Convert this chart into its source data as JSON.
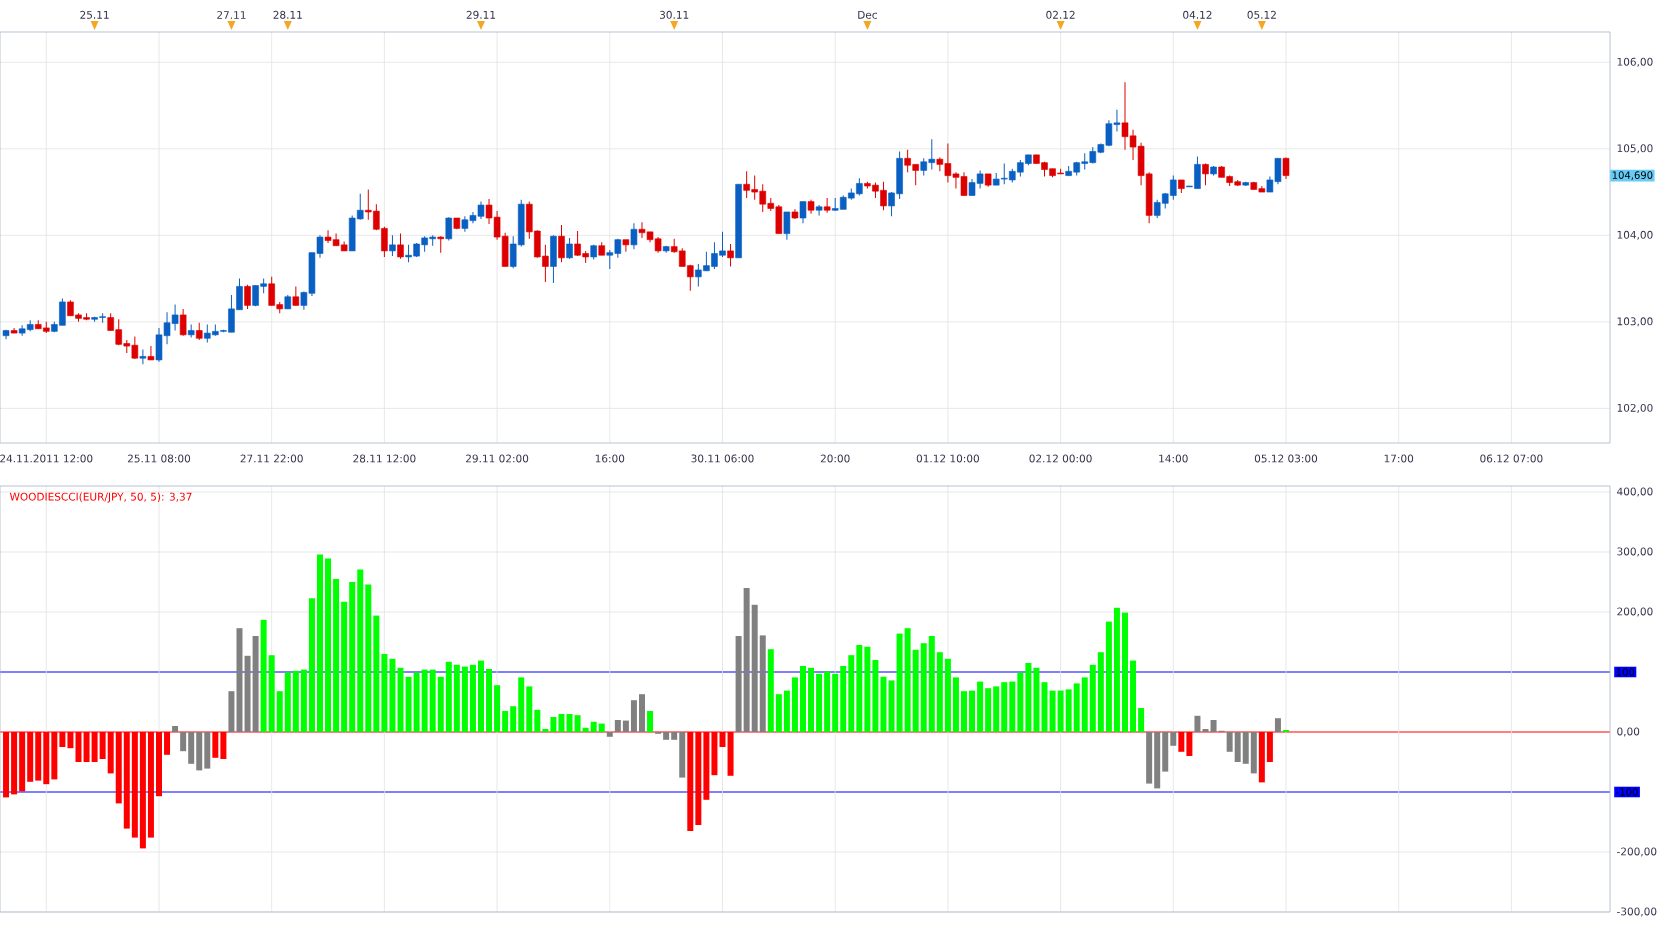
{
  "chart_data": [
    {
      "type": "candlestick",
      "categories": [
        null,
        null,
        null,
        null,
        null,
        "24.11.2011 12:00",
        null,
        null,
        null,
        null,
        null,
        null,
        null,
        null,
        null,
        null,
        null,
        null,
        null,
        "25.11 08:00",
        null,
        null,
        null,
        null,
        null,
        null,
        null,
        null,
        null,
        null,
        null,
        null,
        null,
        "27.11 22:00",
        null,
        null,
        null,
        null,
        null,
        null,
        null,
        null,
        null,
        null,
        null,
        null,
        null,
        "28.11 12:00",
        null,
        null,
        null,
        null,
        null,
        null,
        null,
        null,
        null,
        null,
        null,
        null,
        null,
        "29.11 02:00",
        null,
        null,
        null,
        null,
        null,
        null,
        null,
        null,
        null,
        null,
        null,
        null,
        null,
        "16:00",
        null,
        null,
        null,
        null,
        null,
        null,
        null,
        null,
        null,
        null,
        null,
        null,
        null,
        "30.11 06:00",
        null,
        null,
        null,
        null,
        null,
        null,
        null,
        null,
        null,
        null,
        null,
        null,
        null,
        "20:00",
        null,
        null,
        null,
        null,
        null,
        null,
        null,
        null,
        null,
        null,
        null,
        null,
        null,
        "01.12 10:00",
        null,
        null,
        null,
        null,
        null,
        null,
        null,
        null,
        null,
        null,
        null,
        null,
        null,
        "02.12 00:00",
        null,
        null,
        null,
        null,
        null,
        null,
        null,
        null,
        null,
        null,
        null,
        null,
        null,
        "14:00",
        null,
        null,
        null,
        null,
        null,
        null,
        null,
        null,
        null,
        null,
        null,
        null,
        null,
        "05.12 03:00",
        null,
        null,
        null,
        null,
        null,
        null,
        null,
        null,
        null,
        null,
        null,
        null,
        null,
        "17:00",
        null,
        null,
        null,
        null,
        null,
        null,
        null,
        null,
        null,
        null,
        null,
        null,
        null,
        "06.12 07:00",
        null,
        null,
        null,
        null,
        null,
        null,
        null,
        null,
        null,
        null,
        null,
        null
      ],
      "ohlc": [
        [
          102.84,
          102.91,
          102.8,
          102.9
        ],
        [
          102.9,
          102.93,
          102.87,
          102.87
        ],
        [
          102.87,
          102.96,
          102.84,
          102.92
        ],
        [
          102.91,
          103.02,
          102.89,
          102.97
        ],
        [
          102.97,
          103.02,
          102.92,
          102.92
        ],
        [
          102.93,
          103.0,
          102.87,
          102.89
        ],
        [
          102.89,
          103.0,
          102.88,
          102.97
        ],
        [
          102.96,
          103.27,
          102.96,
          103.23
        ],
        [
          103.23,
          103.25,
          103.07,
          103.07
        ],
        [
          103.08,
          103.1,
          103.0,
          103.04
        ],
        [
          103.05,
          103.1,
          103.02,
          103.03
        ],
        [
          103.03,
          103.06,
          103.0,
          103.05
        ],
        [
          103.05,
          103.1,
          102.99,
          103.06
        ],
        [
          103.05,
          103.1,
          102.9,
          102.9
        ],
        [
          102.91,
          103.03,
          102.73,
          102.74
        ],
        [
          102.75,
          102.79,
          102.64,
          102.72
        ],
        [
          102.73,
          102.83,
          102.57,
          102.58
        ],
        [
          102.58,
          102.68,
          102.51,
          102.6
        ],
        [
          102.6,
          102.72,
          102.56,
          102.56
        ],
        [
          102.56,
          102.93,
          102.54,
          102.85
        ],
        [
          102.84,
          103.11,
          102.74,
          102.99
        ],
        [
          102.98,
          103.2,
          102.9,
          103.08
        ],
        [
          103.08,
          103.15,
          102.84,
          102.85
        ],
        [
          102.85,
          102.97,
          102.82,
          102.9
        ],
        [
          102.9,
          102.99,
          102.79,
          102.81
        ],
        [
          102.81,
          102.97,
          102.76,
          102.87
        ],
        [
          102.85,
          102.97,
          102.84,
          102.89
        ],
        [
          102.89,
          102.91,
          102.88,
          102.9
        ],
        [
          102.88,
          103.31,
          102.88,
          103.15
        ],
        [
          103.14,
          103.5,
          103.14,
          103.41
        ],
        [
          103.41,
          103.43,
          103.15,
          103.19
        ],
        [
          103.19,
          103.42,
          103.18,
          103.42
        ],
        [
          103.41,
          103.5,
          103.33,
          103.44
        ],
        [
          103.44,
          103.52,
          103.19,
          103.19
        ],
        [
          103.2,
          103.23,
          103.1,
          103.15
        ],
        [
          103.15,
          103.31,
          103.15,
          103.29
        ],
        [
          103.29,
          103.41,
          103.19,
          103.19
        ],
        [
          103.19,
          103.35,
          103.14,
          103.34
        ],
        [
          103.33,
          103.8,
          103.3,
          103.8
        ],
        [
          103.79,
          104.0,
          103.74,
          103.98
        ],
        [
          103.98,
          104.06,
          103.91,
          103.94
        ],
        [
          103.95,
          104.02,
          103.88,
          103.88
        ],
        [
          103.89,
          103.93,
          103.82,
          103.82
        ],
        [
          103.82,
          104.23,
          103.82,
          104.2
        ],
        [
          104.19,
          104.48,
          104.18,
          104.29
        ],
        [
          104.29,
          104.53,
          104.18,
          104.27
        ],
        [
          104.28,
          104.36,
          104.06,
          104.07
        ],
        [
          104.08,
          104.1,
          103.75,
          103.82
        ],
        [
          103.82,
          104.0,
          103.76,
          103.89
        ],
        [
          103.89,
          104.02,
          103.73,
          103.75
        ],
        [
          103.75,
          103.89,
          103.69,
          103.77
        ],
        [
          103.76,
          103.91,
          103.75,
          103.9
        ],
        [
          103.89,
          103.99,
          103.81,
          103.97
        ],
        [
          103.96,
          104.0,
          103.88,
          103.98
        ],
        [
          103.98,
          103.99,
          103.8,
          103.96
        ],
        [
          103.96,
          104.21,
          103.94,
          104.2
        ],
        [
          104.2,
          104.2,
          104.07,
          104.08
        ],
        [
          104.08,
          104.22,
          104.04,
          104.18
        ],
        [
          104.17,
          104.27,
          104.14,
          104.23
        ],
        [
          104.22,
          104.39,
          104.19,
          104.35
        ],
        [
          104.35,
          104.42,
          104.13,
          104.2
        ],
        [
          104.21,
          104.28,
          103.95,
          103.98
        ],
        [
          103.99,
          104.03,
          103.64,
          103.64
        ],
        [
          103.64,
          103.99,
          103.62,
          103.9
        ],
        [
          103.89,
          104.41,
          103.87,
          104.36
        ],
        [
          104.36,
          104.39,
          103.96,
          104.04
        ],
        [
          104.05,
          104.06,
          103.74,
          103.75
        ],
        [
          103.76,
          103.89,
          103.46,
          103.64
        ],
        [
          103.64,
          104.0,
          103.45,
          103.99
        ],
        [
          103.99,
          104.12,
          103.69,
          103.74
        ],
        [
          103.74,
          103.97,
          103.73,
          103.9
        ],
        [
          103.9,
          104.05,
          103.76,
          103.77
        ],
        [
          103.79,
          103.82,
          103.68,
          103.75
        ],
        [
          103.75,
          103.89,
          103.72,
          103.88
        ],
        [
          103.88,
          103.92,
          103.77,
          103.77
        ],
        [
          103.77,
          103.83,
          103.61,
          103.8
        ],
        [
          103.79,
          103.96,
          103.74,
          103.95
        ],
        [
          103.95,
          103.95,
          103.81,
          103.89
        ],
        [
          103.89,
          104.14,
          103.84,
          104.07
        ],
        [
          104.07,
          104.15,
          103.97,
          104.03
        ],
        [
          104.04,
          104.04,
          103.92,
          103.95
        ],
        [
          103.96,
          103.98,
          103.8,
          103.82
        ],
        [
          103.82,
          103.88,
          103.8,
          103.87
        ],
        [
          103.87,
          103.96,
          103.8,
          103.81
        ],
        [
          103.82,
          103.85,
          103.64,
          103.64
        ],
        [
          103.65,
          103.66,
          103.36,
          103.52
        ],
        [
          103.52,
          103.67,
          103.41,
          103.6
        ],
        [
          103.59,
          103.81,
          103.59,
          103.65
        ],
        [
          103.64,
          103.92,
          103.61,
          103.79
        ],
        [
          103.77,
          104.04,
          103.75,
          103.82
        ],
        [
          103.82,
          103.9,
          103.64,
          103.74
        ],
        [
          103.74,
          104.59,
          103.74,
          104.59
        ],
        [
          104.59,
          104.74,
          104.43,
          104.52
        ],
        [
          104.53,
          104.69,
          104.41,
          104.5
        ],
        [
          104.51,
          104.59,
          104.27,
          104.36
        ],
        [
          104.37,
          104.43,
          104.28,
          104.31
        ],
        [
          104.33,
          104.35,
          104.02,
          104.02
        ],
        [
          104.02,
          104.27,
          103.95,
          104.27
        ],
        [
          104.27,
          104.3,
          104.19,
          104.2
        ],
        [
          104.2,
          104.39,
          104.14,
          104.39
        ],
        [
          104.39,
          104.41,
          104.25,
          104.29
        ],
        [
          104.29,
          104.35,
          104.23,
          104.33
        ],
        [
          104.33,
          104.43,
          104.26,
          104.29
        ],
        [
          104.29,
          104.43,
          104.28,
          104.31
        ],
        [
          104.3,
          104.46,
          104.3,
          104.44
        ],
        [
          104.43,
          104.54,
          104.41,
          104.49
        ],
        [
          104.48,
          104.66,
          104.46,
          104.6
        ],
        [
          104.6,
          104.62,
          104.54,
          104.57
        ],
        [
          104.58,
          104.61,
          104.43,
          104.51
        ],
        [
          104.52,
          104.62,
          104.29,
          104.34
        ],
        [
          104.34,
          104.5,
          104.22,
          104.49
        ],
        [
          104.48,
          104.97,
          104.42,
          104.89
        ],
        [
          104.89,
          104.99,
          104.73,
          104.81
        ],
        [
          104.82,
          104.82,
          104.58,
          104.75
        ],
        [
          104.75,
          104.89,
          104.69,
          104.85
        ],
        [
          104.84,
          105.11,
          104.76,
          104.88
        ],
        [
          104.88,
          104.9,
          104.74,
          104.82
        ],
        [
          104.83,
          105.06,
          104.61,
          104.69
        ],
        [
          104.71,
          104.73,
          104.54,
          104.67
        ],
        [
          104.68,
          104.73,
          104.46,
          104.46
        ],
        [
          104.46,
          104.65,
          104.46,
          104.61
        ],
        [
          104.6,
          104.75,
          104.54,
          104.71
        ],
        [
          104.71,
          104.71,
          104.56,
          104.58
        ],
        [
          104.58,
          104.72,
          104.58,
          104.65
        ],
        [
          104.65,
          104.83,
          104.59,
          104.66
        ],
        [
          104.64,
          104.77,
          104.61,
          104.74
        ],
        [
          104.73,
          104.87,
          104.68,
          104.84
        ],
        [
          104.83,
          104.93,
          104.81,
          104.93
        ],
        [
          104.93,
          104.93,
          104.83,
          104.83
        ],
        [
          104.84,
          104.85,
          104.68,
          104.76
        ],
        [
          104.77,
          104.77,
          104.67,
          104.69
        ],
        [
          104.72,
          104.77,
          104.71,
          104.71
        ],
        [
          104.69,
          104.8,
          104.69,
          104.74
        ],
        [
          104.73,
          104.85,
          104.69,
          104.84
        ],
        [
          104.83,
          104.95,
          104.76,
          104.85
        ],
        [
          104.84,
          105.02,
          104.83,
          104.97
        ],
        [
          104.96,
          105.06,
          104.95,
          105.05
        ],
        [
          105.04,
          105.33,
          105.03,
          105.29
        ],
        [
          105.28,
          105.45,
          105.2,
          105.3
        ],
        [
          105.3,
          105.77,
          104.99,
          105.14
        ],
        [
          105.15,
          105.22,
          104.87,
          105.02
        ],
        [
          105.03,
          105.07,
          104.58,
          104.69
        ],
        [
          104.71,
          104.73,
          104.14,
          104.23
        ],
        [
          104.23,
          104.41,
          104.2,
          104.38
        ],
        [
          104.37,
          104.49,
          104.31,
          104.48
        ],
        [
          104.46,
          104.69,
          104.41,
          104.64
        ],
        [
          104.64,
          104.64,
          104.49,
          104.54
        ],
        [
          104.56,
          104.57,
          104.56,
          104.57
        ],
        [
          104.54,
          104.91,
          104.54,
          104.82
        ],
        [
          104.82,
          104.83,
          104.58,
          104.71
        ],
        [
          104.71,
          104.8,
          104.69,
          104.79
        ],
        [
          104.79,
          104.8,
          104.67,
          104.67
        ],
        [
          104.68,
          104.69,
          104.57,
          104.61
        ],
        [
          104.62,
          104.64,
          104.57,
          104.58
        ],
        [
          104.58,
          104.62,
          104.57,
          104.61
        ],
        [
          104.61,
          104.62,
          104.53,
          104.53
        ],
        [
          104.54,
          104.57,
          104.5,
          104.5
        ],
        [
          104.5,
          104.68,
          104.5,
          104.64
        ],
        [
          104.62,
          104.89,
          104.59,
          104.89
        ],
        [
          104.89,
          104.9,
          104.65,
          104.69
        ],
        null,
        null,
        null,
        null,
        null,
        null,
        null,
        null,
        null,
        null,
        null,
        null,
        null,
        null,
        null,
        null,
        null,
        null,
        null,
        null,
        null,
        null,
        null,
        null,
        null,
        null,
        null,
        null,
        null,
        null,
        null,
        null,
        null,
        null,
        null,
        null,
        null,
        null,
        null,
        null
      ],
      "colors": [
        "#0a5fc2",
        "#dd0000",
        "#0a5fc2",
        "#0a5fc2",
        "#dd0000",
        "#dd0000",
        "#0a5fc2",
        "#0a5fc2",
        "#dd0000",
        "#dd0000",
        "#dd0000",
        "#0a5fc2",
        "#0a5fc2",
        "#dd0000",
        "#dd0000",
        "#dd0000",
        "#dd0000",
        "#0a5fc2",
        "#dd0000",
        "#0a5fc2",
        "#0a5fc2",
        "#0a5fc2",
        "#dd0000",
        "#0a5fc2",
        "#dd0000",
        "#0a5fc2",
        "#0a5fc2",
        "#0a5fc2",
        "#0a5fc2",
        "#0a5fc2",
        "#dd0000",
        "#0a5fc2",
        "#0a5fc2",
        "#dd0000",
        "#dd0000",
        "#0a5fc2",
        "#dd0000",
        "#0a5fc2",
        "#0a5fc2",
        "#0a5fc2",
        "#dd0000",
        "#dd0000",
        "#dd0000",
        "#0a5fc2",
        "#0a5fc2",
        "#dd0000",
        "#dd0000",
        "#dd0000",
        "#0a5fc2",
        "#dd0000",
        "#0a5fc2",
        "#0a5fc2",
        "#0a5fc2",
        "#0a5fc2",
        "#dd0000",
        "#0a5fc2",
        "#dd0000",
        "#0a5fc2",
        "#0a5fc2",
        "#0a5fc2",
        "#dd0000",
        "#dd0000",
        "#dd0000",
        "#0a5fc2",
        "#0a5fc2",
        "#dd0000",
        "#dd0000",
        "#dd0000",
        "#0a5fc2",
        "#dd0000",
        "#0a5fc2",
        "#dd0000",
        "#dd0000",
        "#0a5fc2",
        "#dd0000",
        "#0a5fc2",
        "#0a5fc2",
        "#dd0000",
        "#0a5fc2",
        "#dd0000",
        "#dd0000",
        "#dd0000",
        "#0a5fc2",
        "#dd0000",
        "#dd0000",
        "#dd0000",
        "#0a5fc2",
        "#0a5fc2",
        "#0a5fc2",
        "#0a5fc2",
        "#dd0000",
        "#0a5fc2",
        "#dd0000",
        "#dd0000",
        "#dd0000",
        "#dd0000",
        "#dd0000",
        "#0a5fc2",
        "#dd0000",
        "#0a5fc2",
        "#dd0000",
        "#0a5fc2",
        "#dd0000",
        "#0a5fc2",
        "#0a5fc2",
        "#0a5fc2",
        "#0a5fc2",
        "#dd0000",
        "#dd0000",
        "#dd0000",
        "#0a5fc2",
        "#0a5fc2",
        "#dd0000",
        "#dd0000",
        "#0a5fc2",
        "#0a5fc2",
        "#dd0000",
        "#dd0000",
        "#dd0000",
        "#dd0000",
        "#0a5fc2",
        "#0a5fc2",
        "#dd0000",
        "#0a5fc2",
        "#0a5fc2",
        "#0a5fc2",
        "#0a5fc2",
        "#0a5fc2",
        "#dd0000",
        "#dd0000",
        "#dd0000",
        "#dd0000",
        "#0a5fc2",
        "#0a5fc2",
        "#0a5fc2",
        "#0a5fc2",
        "#0a5fc2",
        "#0a5fc2",
        "#0a5fc2",
        "#dd0000",
        "#dd0000",
        "#dd0000",
        "#dd0000",
        "#0a5fc2",
        "#0a5fc2",
        "#0a5fc2",
        "#dd0000",
        "#0a5fc2",
        "#0a5fc2",
        "#dd0000",
        "#0a5fc2",
        "#dd0000",
        "#dd0000",
        "#dd0000",
        "#0a5fc2",
        "#dd0000",
        "#dd0000",
        "#0a5fc2",
        "#0a5fc2",
        "#dd0000",
        null,
        null,
        null,
        null,
        null,
        null,
        null,
        null,
        null,
        null,
        null,
        null,
        null,
        null,
        null,
        null,
        null,
        null,
        null,
        null,
        null,
        null,
        null,
        null,
        null,
        null,
        null,
        null,
        null,
        null,
        null,
        null,
        null,
        null,
        null,
        null,
        null,
        null,
        null,
        null
      ],
      "ylim": [
        101.6,
        106.35
      ],
      "yticks": [
        {
          "value": 102,
          "label": "102,00"
        },
        {
          "value": 103,
          "label": "103,00"
        },
        {
          "value": 104,
          "label": "104,00"
        },
        {
          "value": 105,
          "label": "105,00"
        },
        {
          "value": 106,
          "label": "106,00"
        }
      ],
      "annotations": [
        "104,690",
        "25.11",
        "27.11",
        "28.11",
        "29.11",
        "30.11",
        "Dec",
        "02.12",
        "04.12",
        "05.12"
      ],
      "grid": true
    },
    {
      "type": "bar",
      "title": "WOODIESCCI(EUR/JPY, 50, 5): 3,37",
      "categories": [
        null,
        null,
        null,
        null,
        null,
        null,
        null,
        null,
        null,
        null,
        null,
        null,
        null,
        null,
        null,
        null,
        null,
        null,
        null,
        null,
        null,
        null,
        null,
        null,
        null,
        null,
        null,
        null,
        null,
        null,
        null,
        null,
        null,
        null,
        null,
        null,
        null,
        null,
        null,
        null,
        null,
        null,
        null,
        null,
        null,
        null,
        null,
        null,
        null,
        null,
        null,
        null,
        null,
        null,
        null,
        null,
        null,
        null,
        null,
        null,
        null,
        null,
        null,
        null,
        null,
        null,
        null,
        null,
        null,
        null,
        null,
        null,
        null,
        null,
        null,
        null,
        null,
        null,
        null,
        null,
        null,
        null,
        null,
        null,
        null,
        null,
        null,
        null,
        null,
        null,
        null,
        null,
        null,
        null,
        null,
        null,
        null,
        null,
        null,
        null,
        null,
        null,
        null,
        null,
        null,
        null,
        null,
        null,
        null,
        null,
        null,
        null,
        null,
        null,
        null,
        null,
        null,
        null,
        null,
        null,
        null,
        null,
        null,
        null,
        null,
        null,
        null,
        null,
        null,
        null,
        null,
        null,
        null,
        null,
        null,
        null,
        null,
        null,
        null,
        null,
        null,
        null,
        null,
        null,
        null,
        null,
        null,
        null,
        null,
        null,
        null,
        null,
        null,
        null,
        null,
        null,
        null,
        null,
        null,
        null,
        null,
        null,
        null,
        null,
        null,
        null,
        null,
        null,
        null,
        null,
        null,
        null,
        null,
        null,
        null,
        null,
        null,
        null,
        null,
        null,
        null,
        null,
        null,
        null,
        null,
        null,
        null,
        null,
        null,
        null,
        null,
        null,
        null,
        null,
        null,
        null,
        null,
        null,
        null,
        null
      ],
      "values": [
        -109,
        -104,
        -99,
        -83,
        -81,
        -87,
        -79,
        -25,
        -27,
        -50,
        -50,
        -50,
        -45,
        -69,
        -119,
        -161,
        -176,
        -194,
        -176,
        -107,
        -38,
        10,
        -32,
        -53,
        -64,
        -61,
        -43,
        -45,
        68,
        173,
        127,
        160,
        187,
        128,
        68,
        99,
        102,
        104,
        223,
        296,
        289,
        255,
        217,
        250,
        271,
        246,
        194,
        130,
        122,
        107,
        92,
        99,
        104,
        104,
        92,
        117,
        112,
        109,
        112,
        119,
        105,
        78,
        35,
        43,
        91,
        76,
        37,
        5,
        25,
        30,
        30,
        28,
        7,
        17,
        14,
        -8,
        20,
        19,
        53,
        63,
        35,
        -3,
        -13,
        -13,
        -76,
        -165,
        -155,
        -113,
        -72,
        -25,
        -73,
        160,
        240,
        212,
        161,
        138,
        63,
        69,
        91,
        110,
        107,
        97,
        101,
        97,
        110,
        128,
        145,
        142,
        120,
        92,
        86,
        164,
        173,
        137,
        148,
        160,
        133,
        122,
        91,
        68,
        69,
        84,
        73,
        76,
        83,
        84,
        99,
        115,
        107,
        83,
        69,
        69,
        71,
        81,
        91,
        112,
        133,
        184,
        207,
        199,
        119,
        40,
        -86,
        -94,
        -66,
        -23,
        -33,
        -40,
        27,
        5,
        20,
        2,
        -33,
        -50,
        -53,
        -69,
        -84,
        -50,
        23,
        3.37,
        null,
        null,
        null,
        null,
        null,
        null,
        null,
        null,
        null,
        null,
        null,
        null,
        null,
        null,
        null,
        null,
        null,
        null,
        null,
        null,
        null,
        null,
        null,
        null,
        null,
        null,
        null,
        null,
        null,
        null,
        null,
        null,
        null,
        null,
        null,
        null,
        null,
        null,
        null,
        null
      ],
      "colors": [
        "#ff0000",
        "#ff0000",
        "#ff0000",
        "#ff0000",
        "#ff0000",
        "#ff0000",
        "#ff0000",
        "#ff0000",
        "#ff0000",
        "#ff0000",
        "#ff0000",
        "#ff0000",
        "#ff0000",
        "#ff0000",
        "#ff0000",
        "#ff0000",
        "#ff0000",
        "#ff0000",
        "#ff0000",
        "#ff0000",
        "#ff0000",
        "#808080",
        "#808080",
        "#808080",
        "#808080",
        "#808080",
        "#ff0000",
        "#ff0000",
        "#808080",
        "#808080",
        "#808080",
        "#808080",
        "#00ff00",
        "#00ff00",
        "#00ff00",
        "#00ff00",
        "#00ff00",
        "#00ff00",
        "#00ff00",
        "#00ff00",
        "#00ff00",
        "#00ff00",
        "#00ff00",
        "#00ff00",
        "#00ff00",
        "#00ff00",
        "#00ff00",
        "#00ff00",
        "#00ff00",
        "#00ff00",
        "#00ff00",
        "#00ff00",
        "#00ff00",
        "#00ff00",
        "#00ff00",
        "#00ff00",
        "#00ff00",
        "#00ff00",
        "#00ff00",
        "#00ff00",
        "#00ff00",
        "#00ff00",
        "#00ff00",
        "#00ff00",
        "#00ff00",
        "#00ff00",
        "#00ff00",
        "#00ff00",
        "#00ff00",
        "#00ff00",
        "#00ff00",
        "#00ff00",
        "#00ff00",
        "#00ff00",
        "#00ff00",
        "#808080",
        "#808080",
        "#808080",
        "#808080",
        "#808080",
        "#00ff00",
        "#808080",
        "#808080",
        "#808080",
        "#808080",
        "#ff0000",
        "#ff0000",
        "#ff0000",
        "#ff0000",
        "#ff0000",
        "#ff0000",
        "#808080",
        "#808080",
        "#808080",
        "#808080",
        "#00ff00",
        "#00ff00",
        "#00ff00",
        "#00ff00",
        "#00ff00",
        "#00ff00",
        "#00ff00",
        "#00ff00",
        "#00ff00",
        "#00ff00",
        "#00ff00",
        "#00ff00",
        "#00ff00",
        "#00ff00",
        "#00ff00",
        "#00ff00",
        "#00ff00",
        "#00ff00",
        "#00ff00",
        "#00ff00",
        "#00ff00",
        "#00ff00",
        "#00ff00",
        "#00ff00",
        "#00ff00",
        "#00ff00",
        "#00ff00",
        "#00ff00",
        "#00ff00",
        "#00ff00",
        "#00ff00",
        "#00ff00",
        "#00ff00",
        "#00ff00",
        "#00ff00",
        "#00ff00",
        "#00ff00",
        "#00ff00",
        "#00ff00",
        "#00ff00",
        "#00ff00",
        "#00ff00",
        "#00ff00",
        "#00ff00",
        "#00ff00",
        "#00ff00",
        "#00ff00",
        "#808080",
        "#808080",
        "#808080",
        "#808080",
        "#ff0000",
        "#ff0000",
        "#808080",
        "#808080",
        "#808080",
        "#808080",
        "#808080",
        "#808080",
        "#808080",
        "#808080",
        "#ff0000",
        "#ff0000",
        "#808080",
        "#00ff00",
        null,
        null,
        null,
        null,
        null,
        null,
        null,
        null,
        null,
        null,
        null,
        null,
        null,
        null,
        null,
        null,
        null,
        null,
        null,
        null,
        null,
        null,
        null,
        null,
        null,
        null,
        null,
        null,
        null,
        null,
        null,
        null,
        null,
        null,
        null,
        null,
        null,
        null,
        null,
        null
      ],
      "ylim": [
        -300,
        410
      ],
      "yticks": [
        {
          "value": 400,
          "label": "400,00"
        },
        {
          "value": 300,
          "label": "300,00"
        },
        {
          "value": 200,
          "label": "200,00"
        },
        {
          "value": 0,
          "label": "0,00"
        },
        {
          "value": -200,
          "label": "-200,00"
        },
        {
          "value": -300,
          "label": "-300,00"
        }
      ],
      "ref_lines": [
        {
          "axis": "y",
          "value": 100,
          "label": "100",
          "color": "#0000ff"
        },
        {
          "axis": "y",
          "value": -100,
          "label": "-100",
          "color": "#0000ff"
        },
        {
          "axis": "y",
          "value": 0,
          "color": "#ff0000"
        }
      ],
      "tick_labels": "y",
      "grid": true
    }
  ]
}
